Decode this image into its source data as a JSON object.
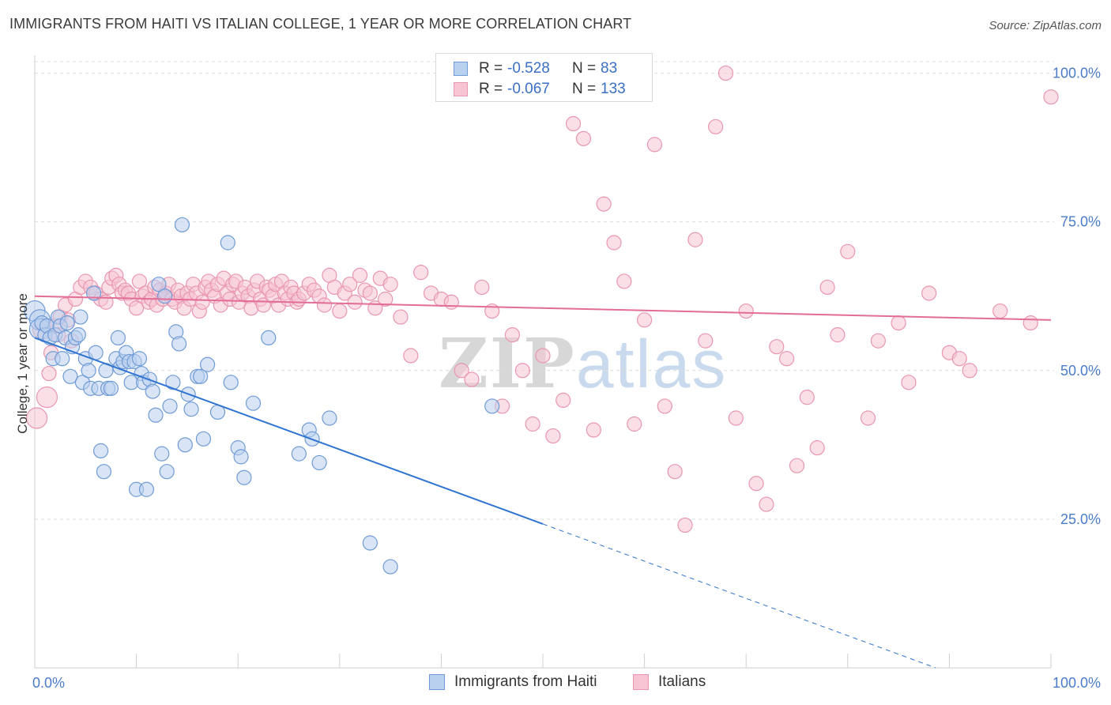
{
  "title": "IMMIGRANTS FROM HAITI VS ITALIAN COLLEGE, 1 YEAR OR MORE CORRELATION CHART",
  "source": "Source: ZipAtlas.com",
  "watermark": {
    "zip": "ZIP",
    "atlas": "atlas"
  },
  "colors": {
    "blue_fill": "#b9d0ef",
    "blue_stroke": "#6f9bd6",
    "blue_line": "#2f74d0",
    "pink_fill": "#f6c4d3",
    "pink_stroke": "#e996b0",
    "pink_line": "#e26d96",
    "tick_text": "#4a7cc9",
    "grid": "#dcdcdc"
  },
  "legend": {
    "rows": [
      {
        "r_label": "R =",
        "r_value": "-0.528",
        "n_label": "N =",
        "n_value": "83"
      },
      {
        "r_label": "R =",
        "r_value": "-0.067",
        "n_label": "N =",
        "n_value": "133"
      }
    ]
  },
  "bottom_legend": {
    "series_a": "Immigrants from Haiti",
    "series_b": "Italians"
  },
  "chart_data": {
    "type": "scatter",
    "title": "IMMIGRANTS FROM HAITI VS ITALIAN COLLEGE, 1 YEAR OR MORE CORRELATION CHART",
    "xlabel": "",
    "ylabel": "College, 1 year or more",
    "xlim": [
      0,
      100
    ],
    "ylim": [
      0,
      103
    ],
    "x_tick_labels": [
      "0.0%",
      "100.0%"
    ],
    "y_ticks": [
      25,
      50,
      75,
      100
    ],
    "y_tick_labels": [
      "25.0%",
      "50.0%",
      "75.0%",
      "100.0%"
    ],
    "grid": true,
    "legend_position": "top-center",
    "series": [
      {
        "name": "Immigrants from Haiti",
        "color": "#6f9bd6",
        "r": -0.528,
        "n": 83,
        "trend": {
          "x0": 0,
          "y0": 55.5,
          "x1": 50,
          "y1": 24.2,
          "dash_to_x": 100
        },
        "points": [
          [
            0,
            60
          ],
          [
            0.5,
            58.5
          ],
          [
            0.5,
            57
          ],
          [
            0.7,
            58
          ],
          [
            1,
            56
          ],
          [
            1.2,
            57.5
          ],
          [
            1.5,
            55.5
          ],
          [
            1.8,
            52
          ],
          [
            2,
            56
          ],
          [
            2.3,
            59
          ],
          [
            2.5,
            57.5
          ],
          [
            2.7,
            52
          ],
          [
            3,
            55.5
          ],
          [
            3.2,
            58
          ],
          [
            3.5,
            49
          ],
          [
            3.7,
            54
          ],
          [
            4,
            55.5
          ],
          [
            4.3,
            56
          ],
          [
            4.5,
            59
          ],
          [
            4.7,
            48
          ],
          [
            5,
            52
          ],
          [
            5.3,
            50
          ],
          [
            5.5,
            47
          ],
          [
            5.8,
            63
          ],
          [
            6,
            53
          ],
          [
            6.3,
            47
          ],
          [
            6.5,
            36.5
          ],
          [
            6.8,
            33
          ],
          [
            7,
            50
          ],
          [
            7.2,
            47
          ],
          [
            7.5,
            47
          ],
          [
            8,
            52
          ],
          [
            8.2,
            55.5
          ],
          [
            8.4,
            50.5
          ],
          [
            8.7,
            51.5
          ],
          [
            9,
            53
          ],
          [
            9.3,
            51.5
          ],
          [
            9.5,
            48
          ],
          [
            9.8,
            51.5
          ],
          [
            10,
            30
          ],
          [
            10.3,
            52
          ],
          [
            10.5,
            49.5
          ],
          [
            10.7,
            48
          ],
          [
            11,
            30
          ],
          [
            11.3,
            48.5
          ],
          [
            11.6,
            46.5
          ],
          [
            11.9,
            42.5
          ],
          [
            12.2,
            64.5
          ],
          [
            12.5,
            36
          ],
          [
            12.8,
            62.5
          ],
          [
            13,
            33
          ],
          [
            13.3,
            44
          ],
          [
            13.6,
            48
          ],
          [
            13.9,
            56.5
          ],
          [
            14.2,
            54.5
          ],
          [
            14.5,
            74.5
          ],
          [
            14.8,
            37.5
          ],
          [
            15.1,
            46
          ],
          [
            15.4,
            43.5
          ],
          [
            16,
            49
          ],
          [
            16.3,
            49
          ],
          [
            16.6,
            38.5
          ],
          [
            17,
            51
          ],
          [
            18,
            43
          ],
          [
            19,
            71.5
          ],
          [
            19.3,
            48
          ],
          [
            20,
            37
          ],
          [
            20.3,
            35.5
          ],
          [
            20.6,
            32
          ],
          [
            21.5,
            44.5
          ],
          [
            23,
            55.5
          ],
          [
            26,
            36
          ],
          [
            27,
            40
          ],
          [
            27.3,
            38.5
          ],
          [
            28,
            34.5
          ],
          [
            29,
            42
          ],
          [
            33,
            21
          ],
          [
            35,
            17
          ],
          [
            45,
            44
          ]
        ]
      },
      {
        "name": "Italians",
        "color": "#e996b0",
        "r": -0.067,
        "n": 133,
        "trend": {
          "x0": 0,
          "y0": 62.5,
          "x1": 100,
          "y1": 58.5
        },
        "points": [
          [
            0.2,
            42
          ],
          [
            0.8,
            57
          ],
          [
            1.2,
            45.5
          ],
          [
            1.4,
            49.5
          ],
          [
            1.6,
            53
          ],
          [
            2,
            57.5
          ],
          [
            2.3,
            56
          ],
          [
            2.5,
            59
          ],
          [
            3,
            61
          ],
          [
            3.3,
            58.5
          ],
          [
            3.6,
            55
          ],
          [
            4,
            62
          ],
          [
            4.5,
            64
          ],
          [
            5,
            65
          ],
          [
            5.5,
            64
          ],
          [
            6,
            63
          ],
          [
            6.5,
            62
          ],
          [
            7,
            61.5
          ],
          [
            7.3,
            64
          ],
          [
            7.6,
            65.5
          ],
          [
            8,
            66
          ],
          [
            8.3,
            64.5
          ],
          [
            8.6,
            63
          ],
          [
            8.9,
            63.5
          ],
          [
            9.2,
            63
          ],
          [
            9.5,
            62
          ],
          [
            10,
            60.5
          ],
          [
            10.3,
            65
          ],
          [
            10.6,
            62.5
          ],
          [
            10.9,
            63
          ],
          [
            11.2,
            61.5
          ],
          [
            11.5,
            62
          ],
          [
            11.8,
            64
          ],
          [
            12,
            61
          ],
          [
            12.3,
            63.5
          ],
          [
            12.6,
            62
          ],
          [
            12.9,
            63
          ],
          [
            13.2,
            64.5
          ],
          [
            13.5,
            62
          ],
          [
            13.8,
            61.5
          ],
          [
            14.1,
            63.5
          ],
          [
            14.4,
            62.5
          ],
          [
            14.7,
            60.5
          ],
          [
            15,
            63
          ],
          [
            15.3,
            62
          ],
          [
            15.6,
            64.5
          ],
          [
            15.9,
            63
          ],
          [
            16.2,
            60
          ],
          [
            16.5,
            61.5
          ],
          [
            16.8,
            64
          ],
          [
            17.1,
            65
          ],
          [
            17.4,
            63.5
          ],
          [
            17.7,
            62.5
          ],
          [
            18,
            64.5
          ],
          [
            18.3,
            61
          ],
          [
            18.6,
            65.5
          ],
          [
            18.9,
            63
          ],
          [
            19.2,
            62
          ],
          [
            19.5,
            64.5
          ],
          [
            19.8,
            65
          ],
          [
            20.1,
            61.5
          ],
          [
            20.4,
            63
          ],
          [
            20.7,
            64
          ],
          [
            21,
            62.5
          ],
          [
            21.3,
            60.5
          ],
          [
            21.6,
            63.5
          ],
          [
            21.9,
            65
          ],
          [
            22.2,
            62
          ],
          [
            22.5,
            61
          ],
          [
            22.8,
            64
          ],
          [
            23.1,
            63.5
          ],
          [
            23.4,
            62.5
          ],
          [
            23.7,
            64.5
          ],
          [
            24,
            61
          ],
          [
            24.3,
            65
          ],
          [
            24.6,
            63
          ],
          [
            24.9,
            62
          ],
          [
            25.2,
            64
          ],
          [
            25.5,
            63
          ],
          [
            25.8,
            61.5
          ],
          [
            26,
            62
          ],
          [
            26.5,
            63
          ],
          [
            27,
            64.5
          ],
          [
            27.5,
            63.5
          ],
          [
            28,
            62.5
          ],
          [
            28.5,
            61
          ],
          [
            29,
            66
          ],
          [
            29.5,
            64
          ],
          [
            30,
            60
          ],
          [
            30.5,
            63
          ],
          [
            31,
            64.5
          ],
          [
            31.5,
            61.5
          ],
          [
            32,
            66
          ],
          [
            32.5,
            63.5
          ],
          [
            33,
            63
          ],
          [
            33.5,
            60.5
          ],
          [
            34,
            65.5
          ],
          [
            34.5,
            62
          ],
          [
            35,
            64.5
          ],
          [
            36,
            59
          ],
          [
            37,
            52.5
          ],
          [
            38,
            66.5
          ],
          [
            39,
            63
          ],
          [
            40,
            62
          ],
          [
            41,
            61.5
          ],
          [
            42,
            50
          ],
          [
            43,
            48.5
          ],
          [
            44,
            64
          ],
          [
            45,
            60
          ],
          [
            46,
            44
          ],
          [
            47,
            56
          ],
          [
            48,
            50
          ],
          [
            49,
            41
          ],
          [
            50,
            52.5
          ],
          [
            51,
            39
          ],
          [
            52,
            45
          ],
          [
            53,
            91.5
          ],
          [
            54,
            89
          ],
          [
            55,
            40
          ],
          [
            56,
            78
          ],
          [
            57,
            71.5
          ],
          [
            58,
            65
          ],
          [
            59,
            41
          ],
          [
            60,
            58.5
          ],
          [
            61,
            88
          ],
          [
            62,
            44
          ],
          [
            63,
            33
          ],
          [
            64,
            24
          ],
          [
            65,
            72
          ],
          [
            66,
            55
          ],
          [
            67,
            91
          ],
          [
            68,
            100
          ],
          [
            69,
            42
          ],
          [
            70,
            60
          ],
          [
            71,
            31
          ],
          [
            72,
            27.5
          ],
          [
            73,
            54
          ],
          [
            74,
            52
          ],
          [
            75,
            34
          ],
          [
            76,
            45.5
          ],
          [
            77,
            37
          ],
          [
            78,
            64
          ],
          [
            79,
            56
          ],
          [
            80,
            70
          ],
          [
            82,
            42
          ],
          [
            83,
            55
          ],
          [
            85,
            58
          ],
          [
            86,
            48
          ],
          [
            88,
            63
          ],
          [
            90,
            53
          ],
          [
            91,
            52
          ],
          [
            92,
            50
          ],
          [
            95,
            60
          ],
          [
            98,
            58
          ],
          [
            100,
            96
          ]
        ]
      }
    ]
  }
}
